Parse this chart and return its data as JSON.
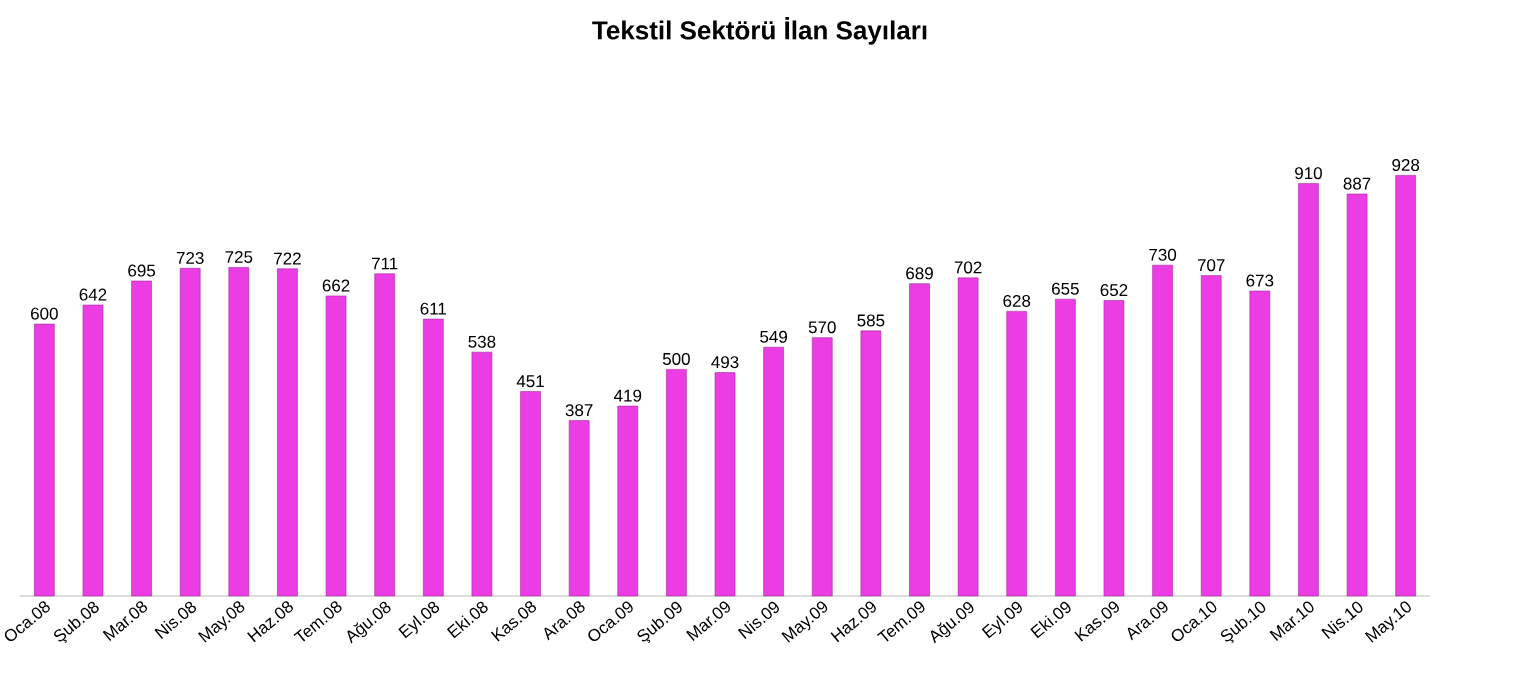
{
  "chart_data": {
    "type": "bar",
    "title": "Tekstil Sektörü İlan Sayıları",
    "categories": [
      "Oca.08",
      "Şub.08",
      "Mar.08",
      "Nis.08",
      "May.08",
      "Haz.08",
      "Tem.08",
      "Ağu.08",
      "Eyl.08",
      "Eki.08",
      "Kas.08",
      "Ara.08",
      "Oca.09",
      "Şub.09",
      "Mar.09",
      "Nis.09",
      "May.09",
      "Haz.09",
      "Tem.09",
      "Ağu.09",
      "Eyl.09",
      "Eki.09",
      "Kas.09",
      "Ara.09",
      "Oca.10",
      "Şub.10",
      "Mar.10",
      "Nis.10",
      "May.10"
    ],
    "values": [
      600,
      642,
      695,
      723,
      725,
      722,
      662,
      711,
      611,
      538,
      451,
      387,
      419,
      500,
      493,
      549,
      570,
      585,
      689,
      702,
      628,
      655,
      652,
      730,
      707,
      673,
      910,
      887,
      928
    ],
    "color": "#ec3ce4",
    "data_labels": true
  }
}
